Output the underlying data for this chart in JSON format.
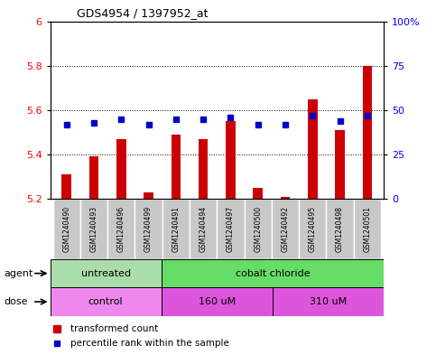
{
  "title": "GDS4954 / 1397952_at",
  "samples": [
    "GSM1240490",
    "GSM1240493",
    "GSM1240496",
    "GSM1240499",
    "GSM1240491",
    "GSM1240494",
    "GSM1240497",
    "GSM1240500",
    "GSM1240492",
    "GSM1240495",
    "GSM1240498",
    "GSM1240501"
  ],
  "transformed_count": [
    5.31,
    5.39,
    5.47,
    5.23,
    5.49,
    5.47,
    5.55,
    5.25,
    5.21,
    5.65,
    5.51,
    5.8
  ],
  "percentile_rank": [
    42,
    43,
    45,
    42,
    45,
    45,
    46,
    42,
    42,
    47,
    44,
    47
  ],
  "ylim_left": [
    5.2,
    6.0
  ],
  "yticks_left": [
    5.2,
    5.4,
    5.6,
    5.8,
    6.0
  ],
  "ytick_labels_left": [
    "5.2",
    "5.4",
    "5.6",
    "5.8",
    "6"
  ],
  "yticks_right": [
    0,
    25,
    50,
    75,
    100
  ],
  "ytick_labels_right": [
    "0",
    "25",
    "50",
    "75",
    "100%"
  ],
  "bar_color": "#cc0000",
  "dot_color": "#0000cc",
  "bar_bottom": 5.2,
  "sample_box_color": "#c8c8c8",
  "agent_untreated_color": "#aaddaa",
  "agent_cobalt_color": "#66dd66",
  "dose_control_color": "#ee88ee",
  "dose_160_color": "#dd55dd",
  "dose_310_color": "#dd55dd",
  "agent_groups": [
    {
      "label": "untreated",
      "start": 0,
      "end": 4
    },
    {
      "label": "cobalt chloride",
      "start": 4,
      "end": 12
    }
  ],
  "dose_groups": [
    {
      "label": "control",
      "start": 0,
      "end": 4
    },
    {
      "label": "160 uM",
      "start": 4,
      "end": 8
    },
    {
      "label": "310 uM",
      "start": 8,
      "end": 12
    }
  ]
}
